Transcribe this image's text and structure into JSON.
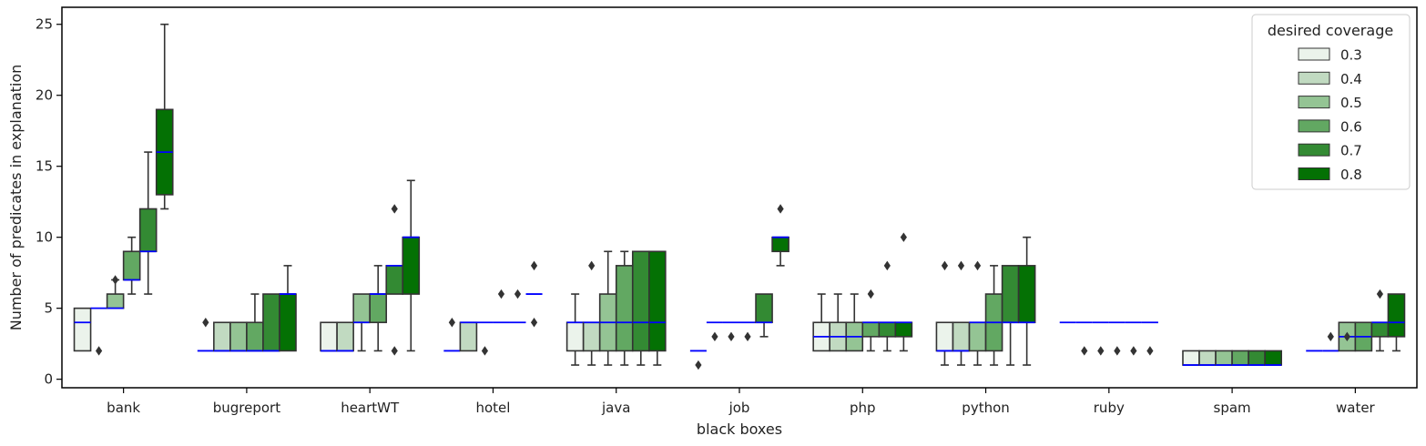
{
  "chart_data": {
    "type": "box",
    "xlabel": "black boxes",
    "ylabel": "Number of predicates in explanation",
    "ylim": [
      -0.6,
      26.2
    ],
    "yticks": [
      0,
      5,
      10,
      15,
      20,
      25
    ],
    "categories": [
      "bank",
      "bugreport",
      "heartWT",
      "hotel",
      "java",
      "job",
      "php",
      "python",
      "ruby",
      "spam",
      "water"
    ],
    "legend": {
      "title": "desired coverage",
      "position": "top-right"
    },
    "grid": false,
    "median_color": "#0000ff",
    "series": [
      {
        "name": "0.3",
        "color": "#ebf3eb",
        "boxes": [
          {
            "q1": 2,
            "median": 4,
            "q3": 5,
            "whislo": 2,
            "whishi": 5,
            "fliers": []
          },
          {
            "q1": 2,
            "median": 2,
            "q3": 2,
            "whislo": 2,
            "whishi": 2,
            "fliers": [
              4
            ]
          },
          {
            "q1": 2,
            "median": 2,
            "q3": 4,
            "whislo": 2,
            "whishi": 4,
            "fliers": []
          },
          {
            "q1": 2,
            "median": 2,
            "q3": 2,
            "whislo": 2,
            "whishi": 2,
            "fliers": [
              4
            ]
          },
          {
            "q1": 2,
            "median": 4,
            "q3": 4,
            "whislo": 1,
            "whishi": 6,
            "fliers": []
          },
          {
            "q1": 2,
            "median": 2,
            "q3": 2,
            "whislo": 2,
            "whishi": 2,
            "fliers": [
              1
            ]
          },
          {
            "q1": 2,
            "median": 3,
            "q3": 4,
            "whislo": 2,
            "whishi": 6,
            "fliers": []
          },
          {
            "q1": 2,
            "median": 2,
            "q3": 4,
            "whislo": 1,
            "whishi": 4,
            "fliers": [
              8
            ]
          },
          {
            "q1": 4,
            "median": 4,
            "q3": 4,
            "whislo": 4,
            "whishi": 4,
            "fliers": []
          },
          {
            "q1": 1,
            "median": 1,
            "q3": 2,
            "whislo": 1,
            "whishi": 2,
            "fliers": []
          },
          {
            "q1": 2,
            "median": 2,
            "q3": 2,
            "whislo": 2,
            "whishi": 2,
            "fliers": []
          }
        ]
      },
      {
        "name": "0.4",
        "color": "#c1dac1",
        "boxes": [
          {
            "q1": 5,
            "median": 5,
            "q3": 5,
            "whislo": 5,
            "whishi": 5,
            "fliers": [
              2
            ]
          },
          {
            "q1": 2,
            "median": 2,
            "q3": 4,
            "whislo": 2,
            "whishi": 4,
            "fliers": []
          },
          {
            "q1": 2,
            "median": 2,
            "q3": 4,
            "whislo": 2,
            "whishi": 4,
            "fliers": []
          },
          {
            "q1": 2,
            "median": 4,
            "q3": 4,
            "whislo": 2,
            "whishi": 4,
            "fliers": []
          },
          {
            "q1": 2,
            "median": 4,
            "q3": 4,
            "whislo": 1,
            "whishi": 4,
            "fliers": [
              8
            ]
          },
          {
            "q1": 4,
            "median": 4,
            "q3": 4,
            "whislo": 4,
            "whishi": 4,
            "fliers": [
              3
            ]
          },
          {
            "q1": 2,
            "median": 3,
            "q3": 4,
            "whislo": 2,
            "whishi": 6,
            "fliers": []
          },
          {
            "q1": 2,
            "median": 2,
            "q3": 4,
            "whislo": 1,
            "whishi": 4,
            "fliers": [
              8
            ]
          },
          {
            "q1": 4,
            "median": 4,
            "q3": 4,
            "whislo": 4,
            "whishi": 4,
            "fliers": [
              2
            ]
          },
          {
            "q1": 1,
            "median": 1,
            "q3": 2,
            "whislo": 1,
            "whishi": 2,
            "fliers": []
          },
          {
            "q1": 2,
            "median": 2,
            "q3": 2,
            "whislo": 2,
            "whishi": 2,
            "fliers": [
              3
            ]
          }
        ]
      },
      {
        "name": "0.5",
        "color": "#94c494",
        "boxes": [
          {
            "q1": 5,
            "median": 5,
            "q3": 6,
            "whislo": 5,
            "whishi": 7,
            "fliers": [
              7
            ]
          },
          {
            "q1": 2,
            "median": 2,
            "q3": 4,
            "whislo": 2,
            "whishi": 4,
            "fliers": []
          },
          {
            "q1": 4,
            "median": 4,
            "q3": 6,
            "whislo": 2,
            "whishi": 6,
            "fliers": []
          },
          {
            "q1": 4,
            "median": 4,
            "q3": 4,
            "whislo": 4,
            "whishi": 4,
            "fliers": [
              2
            ]
          },
          {
            "q1": 2,
            "median": 4,
            "q3": 6,
            "whislo": 1,
            "whishi": 9,
            "fliers": []
          },
          {
            "q1": 4,
            "median": 4,
            "q3": 4,
            "whislo": 4,
            "whishi": 4,
            "fliers": [
              3
            ]
          },
          {
            "q1": 2,
            "median": 3,
            "q3": 4,
            "whislo": 2,
            "whishi": 6,
            "fliers": []
          },
          {
            "q1": 2,
            "median": 4,
            "q3": 4,
            "whislo": 1,
            "whishi": 4,
            "fliers": [
              8
            ]
          },
          {
            "q1": 4,
            "median": 4,
            "q3": 4,
            "whislo": 4,
            "whishi": 4,
            "fliers": [
              2
            ]
          },
          {
            "q1": 1,
            "median": 1,
            "q3": 2,
            "whislo": 1,
            "whishi": 2,
            "fliers": []
          },
          {
            "q1": 2,
            "median": 3,
            "q3": 4,
            "whislo": 2,
            "whishi": 4,
            "fliers": [
              3
            ]
          }
        ]
      },
      {
        "name": "0.6",
        "color": "#62a862",
        "boxes": [
          {
            "q1": 7,
            "median": 7,
            "q3": 9,
            "whislo": 6,
            "whishi": 10,
            "fliers": []
          },
          {
            "q1": 2,
            "median": 2,
            "q3": 4,
            "whislo": 2,
            "whishi": 6,
            "fliers": []
          },
          {
            "q1": 4,
            "median": 6,
            "q3": 6,
            "whislo": 2,
            "whishi": 8,
            "fliers": []
          },
          {
            "q1": 4,
            "median": 4,
            "q3": 4,
            "whislo": 4,
            "whishi": 4,
            "fliers": [
              6
            ]
          },
          {
            "q1": 2,
            "median": 4,
            "q3": 8,
            "whislo": 1,
            "whishi": 9,
            "fliers": []
          },
          {
            "q1": 4,
            "median": 4,
            "q3": 4,
            "whislo": 4,
            "whishi": 4,
            "fliers": [
              3
            ]
          },
          {
            "q1": 3,
            "median": 4,
            "q3": 4,
            "whislo": 2,
            "whishi": 4,
            "fliers": [
              6
            ]
          },
          {
            "q1": 2,
            "median": 4,
            "q3": 6,
            "whislo": 1,
            "whishi": 8,
            "fliers": []
          },
          {
            "q1": 4,
            "median": 4,
            "q3": 4,
            "whislo": 4,
            "whishi": 4,
            "fliers": [
              2
            ]
          },
          {
            "q1": 1,
            "median": 1,
            "q3": 2,
            "whislo": 1,
            "whishi": 2,
            "fliers": []
          },
          {
            "q1": 2,
            "median": 3,
            "q3": 4,
            "whislo": 2,
            "whishi": 4,
            "fliers": []
          }
        ]
      },
      {
        "name": "0.7",
        "color": "#338a33",
        "boxes": [
          {
            "q1": 9,
            "median": 9,
            "q3": 12,
            "whislo": 6,
            "whishi": 16,
            "fliers": []
          },
          {
            "q1": 2,
            "median": 2,
            "q3": 6,
            "whislo": 2,
            "whishi": 6,
            "fliers": []
          },
          {
            "q1": 6,
            "median": 8,
            "q3": 8,
            "whislo": 6,
            "whishi": 8,
            "fliers": [
              12,
              2
            ]
          },
          {
            "q1": 4,
            "median": 4,
            "q3": 4,
            "whislo": 4,
            "whishi": 4,
            "fliers": [
              6
            ]
          },
          {
            "q1": 2,
            "median": 4,
            "q3": 9,
            "whislo": 1,
            "whishi": 9,
            "fliers": []
          },
          {
            "q1": 4,
            "median": 4,
            "q3": 6,
            "whislo": 3,
            "whishi": 6,
            "fliers": []
          },
          {
            "q1": 3,
            "median": 4,
            "q3": 4,
            "whislo": 2,
            "whishi": 4,
            "fliers": [
              8
            ]
          },
          {
            "q1": 4,
            "median": 4,
            "q3": 8,
            "whislo": 1,
            "whishi": 8,
            "fliers": []
          },
          {
            "q1": 4,
            "median": 4,
            "q3": 4,
            "whislo": 4,
            "whishi": 4,
            "fliers": [
              2
            ]
          },
          {
            "q1": 1,
            "median": 1,
            "q3": 2,
            "whislo": 1,
            "whishi": 2,
            "fliers": []
          },
          {
            "q1": 3,
            "median": 4,
            "q3": 4,
            "whislo": 2,
            "whishi": 4,
            "fliers": [
              6
            ]
          }
        ]
      },
      {
        "name": "0.8",
        "color": "#047104",
        "boxes": [
          {
            "q1": 13,
            "median": 16,
            "q3": 19,
            "whislo": 12,
            "whishi": 25,
            "fliers": []
          },
          {
            "q1": 2,
            "median": 6,
            "q3": 6,
            "whislo": 2,
            "whishi": 8,
            "fliers": []
          },
          {
            "q1": 6,
            "median": 10,
            "q3": 10,
            "whislo": 2,
            "whishi": 14,
            "fliers": []
          },
          {
            "q1": 6,
            "median": 6,
            "q3": 6,
            "whislo": 6,
            "whishi": 6,
            "fliers": [
              8,
              4
            ]
          },
          {
            "q1": 2,
            "median": 4,
            "q3": 9,
            "whislo": 1,
            "whishi": 9,
            "fliers": []
          },
          {
            "q1": 9,
            "median": 10,
            "q3": 10,
            "whislo": 8,
            "whishi": 10,
            "fliers": [
              12
            ]
          },
          {
            "q1": 3,
            "median": 4,
            "q3": 4,
            "whislo": 2,
            "whishi": 4,
            "fliers": [
              10
            ]
          },
          {
            "q1": 4,
            "median": 4,
            "q3": 8,
            "whislo": 1,
            "whishi": 10,
            "fliers": []
          },
          {
            "q1": 4,
            "median": 4,
            "q3": 4,
            "whislo": 4,
            "whishi": 4,
            "fliers": [
              2
            ]
          },
          {
            "q1": 1,
            "median": 1,
            "q3": 2,
            "whislo": 1,
            "whishi": 2,
            "fliers": []
          },
          {
            "q1": 3,
            "median": 4,
            "q3": 6,
            "whislo": 2,
            "whishi": 6,
            "fliers": []
          }
        ]
      }
    ]
  }
}
